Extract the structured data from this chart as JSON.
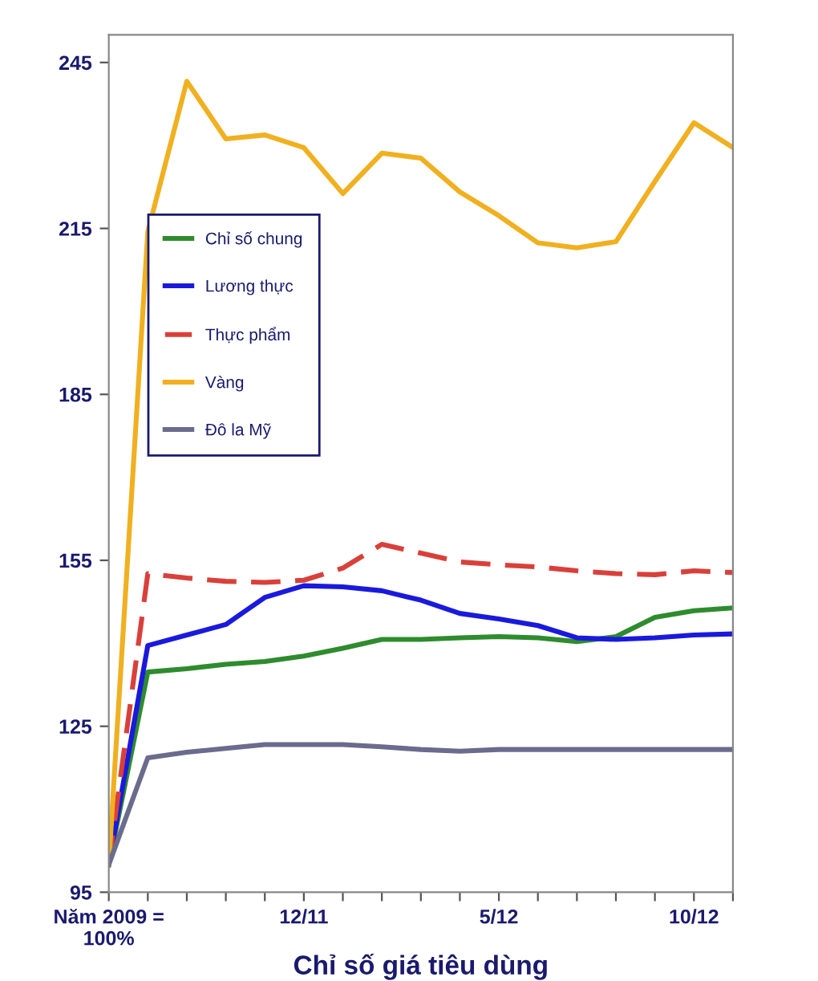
{
  "chart_data": {
    "type": "line",
    "xlabel": "Chỉ số giá tiêu dùng",
    "categories": [
      "Năm 2009 =\n100%",
      null,
      null,
      null,
      null,
      "12/11",
      null,
      null,
      null,
      null,
      "5/12",
      null,
      null,
      null,
      null,
      "10/12",
      null
    ],
    "ylim": [
      95,
      250
    ],
    "yticks": [
      95,
      125,
      155,
      185,
      215,
      245
    ],
    "grid": false,
    "legend": "top left",
    "marker": "none",
    "series": [
      {
        "name": "Chỉ số chung",
        "color": "#2e8b2e",
        "values": [
          100,
          134.8,
          135.4,
          136.2,
          136.7,
          137.7,
          139.1,
          140.7,
          140.7,
          141.0,
          141.2,
          141.0,
          140.3,
          141.2,
          144.7,
          145.9,
          146.4
        ]
      },
      {
        "name": "Lương thực",
        "color": "#1a1adc",
        "values": [
          100,
          139.6,
          141.5,
          143.4,
          148.3,
          150.4,
          150.2,
          149.5,
          147.8,
          145.4,
          144.4,
          143.2,
          141.0,
          140.7,
          141.0,
          141.5,
          141.7
        ]
      },
      {
        "name": "Thực phẩm",
        "color": "#d9403a",
        "line_style": "dashed",
        "values": [
          100,
          152.6,
          151.8,
          151.2,
          151.0,
          151.4,
          153.6,
          157.9,
          156.3,
          154.7,
          154.2,
          153.8,
          153.1,
          152.6,
          152.4,
          153.1,
          152.8
        ]
      },
      {
        "name": "Vàng",
        "color": "#f0b020",
        "values": [
          100,
          214.4,
          241.6,
          231.2,
          231.9,
          229.6,
          221.3,
          228.6,
          227.7,
          221.6,
          217.3,
          212.4,
          211.5,
          212.6,
          223.5,
          234.1,
          229.6
        ]
      },
      {
        "name": "Đô la Mỹ",
        "color": "#6b6b8e",
        "values": [
          100,
          119.3,
          120.3,
          121.0,
          121.7,
          121.7,
          121.7,
          121.3,
          120.8,
          120.5,
          120.8,
          120.8,
          120.8,
          120.8,
          120.8,
          120.8,
          120.8
        ]
      }
    ]
  }
}
